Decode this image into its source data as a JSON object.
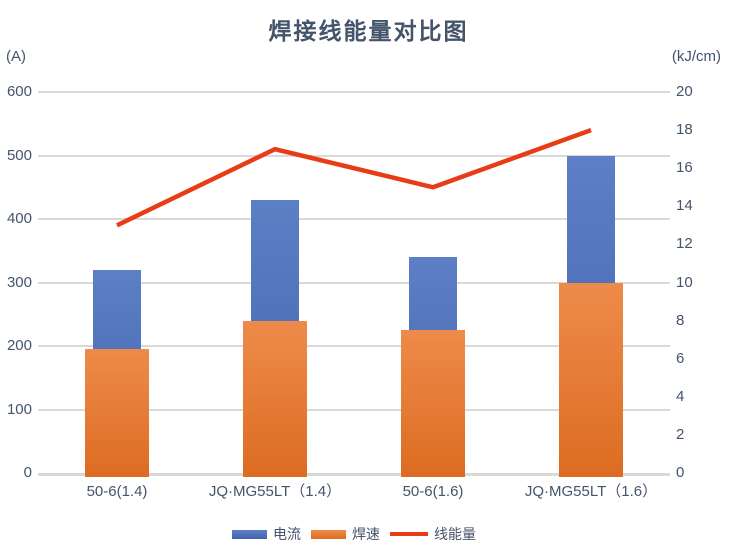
{
  "title": "焊接线能量对比图",
  "left_axis": {
    "unit": "(A)",
    "min": 0,
    "max": 600,
    "ticks": [
      0,
      100,
      200,
      300,
      400,
      500,
      600
    ]
  },
  "right_axis": {
    "unit": "(kJ/cm)",
    "min": 0,
    "max": 20,
    "ticks": [
      0,
      2,
      4,
      6,
      8,
      10,
      12,
      14,
      16,
      18,
      20
    ]
  },
  "colors": {
    "text": "#44546a",
    "gridline": "#d9d9d9",
    "bar_current_top": "#5d7fc6",
    "bar_current_bottom": "#4063ac",
    "bar_speed_top": "#ee8b4a",
    "bar_speed_bottom": "#dc6c22",
    "line_energy": "#e83c17"
  },
  "chart_data": {
    "type": "bar",
    "title": "焊接线能量对比图",
    "categories": [
      {
        "label": "50-6(1.4)",
        "highlighted": false
      },
      {
        "label": "JQ·MG55LT（1.4）",
        "highlighted": true
      },
      {
        "label": "50-6(1.6)",
        "highlighted": false
      },
      {
        "label": "JQ·MG55LT（1.6）",
        "highlighted": true
      }
    ],
    "series": [
      {
        "name": "电流",
        "type": "bar",
        "axis": "left",
        "values": [
          320,
          430,
          340,
          500
        ]
      },
      {
        "name": "焊速",
        "type": "bar",
        "axis": "left",
        "values": [
          195,
          240,
          225,
          300
        ]
      },
      {
        "name": "线能量",
        "type": "line",
        "axis": "right",
        "values": [
          13,
          17,
          15,
          18
        ]
      }
    ],
    "left_ylim": [
      0,
      600
    ],
    "right_ylim": [
      0,
      20
    ],
    "grid": "horizontal",
    "legend_position": "bottom"
  },
  "legend": {
    "items": [
      {
        "label": "电流",
        "swatch": "blue-bar"
      },
      {
        "label": "焊速",
        "swatch": "orange-bar"
      },
      {
        "label": "线能量",
        "swatch": "red-line"
      }
    ]
  }
}
